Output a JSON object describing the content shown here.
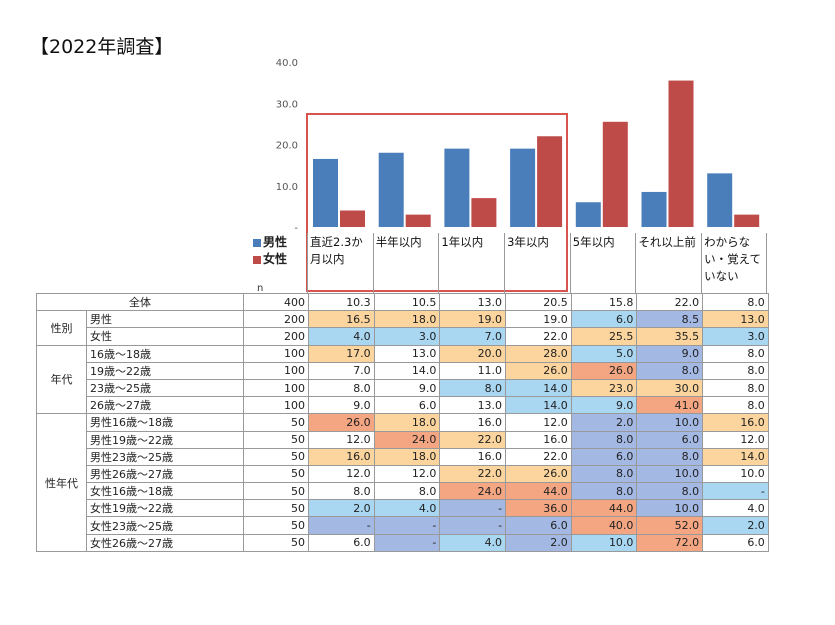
{
  "title": "【2022年調査】",
  "chart_data": {
    "type": "bar",
    "yticks": [
      "40.0",
      "30.0",
      "20.0",
      "10.0",
      "-"
    ],
    "ylim": [
      0,
      40
    ],
    "categories": [
      "直近2.3か月以内",
      "半年以内",
      "1年以内",
      "3年以内",
      "5年以内",
      "それ以上前",
      "わからない・覚えていない"
    ],
    "series": [
      {
        "name": "男性",
        "color": "#4a7ebb",
        "values": [
          16.5,
          18.0,
          19.0,
          19.0,
          6.0,
          8.5,
          13.0
        ]
      },
      {
        "name": "女性",
        "color": "#be4b48",
        "values": [
          4.0,
          3.0,
          7.0,
          22.0,
          25.5,
          35.5,
          3.0
        ]
      }
    ]
  },
  "legend": {
    "male": "男性",
    "female": "女性"
  },
  "n_label": "n",
  "categories_display": [
    "直近2.3か月以内",
    "半年以内",
    "1年以内",
    "3年以内",
    "5年以内",
    "それ以上前",
    "わからない・覚えていない"
  ],
  "colors": {
    "orange": "#fbd59d",
    "salmon": "#f4a582",
    "lightblue": "#a9d7f2",
    "blue": "#a3b8e3"
  },
  "table": {
    "total": {
      "label": "全体",
      "n": "400",
      "values": [
        "10.3",
        "10.5",
        "13.0",
        "20.5",
        "15.8",
        "22.0",
        "8.0"
      ]
    },
    "groups": [
      {
        "label": "性別",
        "rows": [
          {
            "label": "男性",
            "n": "200",
            "values": [
              "16.5",
              "18.0",
              "19.0",
              "19.0",
              "6.0",
              "8.5",
              "13.0"
            ],
            "colors": [
              "o",
              "o",
              "o",
              "",
              "l",
              "b",
              "o"
            ]
          },
          {
            "label": "女性",
            "n": "200",
            "values": [
              "4.0",
              "3.0",
              "7.0",
              "22.0",
              "25.5",
              "35.5",
              "3.0"
            ],
            "colors": [
              "l",
              "l",
              "l",
              "",
              "o",
              "o",
              "l"
            ]
          }
        ]
      },
      {
        "label": "年代",
        "rows": [
          {
            "label": "16歳〜18歳",
            "n": "100",
            "values": [
              "17.0",
              "13.0",
              "20.0",
              "28.0",
              "5.0",
              "9.0",
              "8.0"
            ],
            "colors": [
              "o",
              "",
              "o",
              "o",
              "l",
              "b",
              ""
            ]
          },
          {
            "label": "19歳〜22歳",
            "n": "100",
            "values": [
              "7.0",
              "14.0",
              "11.0",
              "26.0",
              "26.0",
              "8.0",
              "8.0"
            ],
            "colors": [
              "",
              "",
              "",
              "o",
              "s",
              "b",
              ""
            ]
          },
          {
            "label": "23歳〜25歳",
            "n": "100",
            "values": [
              "8.0",
              "9.0",
              "8.0",
              "14.0",
              "23.0",
              "30.0",
              "8.0"
            ],
            "colors": [
              "",
              "",
              "l",
              "l",
              "o",
              "o",
              ""
            ]
          },
          {
            "label": "26歳〜27歳",
            "n": "100",
            "values": [
              "9.0",
              "6.0",
              "13.0",
              "14.0",
              "9.0",
              "41.0",
              "8.0"
            ],
            "colors": [
              "",
              "",
              "",
              "l",
              "l",
              "s",
              ""
            ]
          }
        ]
      },
      {
        "label": "性年代",
        "rows": [
          {
            "label": "男性16歳〜18歳",
            "n": "50",
            "values": [
              "26.0",
              "18.0",
              "16.0",
              "12.0",
              "2.0",
              "10.0",
              "16.0"
            ],
            "colors": [
              "s",
              "o",
              "",
              "",
              "b",
              "b",
              "o"
            ]
          },
          {
            "label": "男性19歳〜22歳",
            "n": "50",
            "values": [
              "12.0",
              "24.0",
              "22.0",
              "16.0",
              "8.0",
              "6.0",
              "12.0"
            ],
            "colors": [
              "",
              "s",
              "o",
              "",
              "b",
              "b",
              ""
            ]
          },
          {
            "label": "男性23歳〜25歳",
            "n": "50",
            "values": [
              "16.0",
              "18.0",
              "16.0",
              "22.0",
              "6.0",
              "8.0",
              "14.0"
            ],
            "colors": [
              "o",
              "o",
              "",
              "",
              "b",
              "b",
              "o"
            ]
          },
          {
            "label": "男性26歳〜27歳",
            "n": "50",
            "values": [
              "12.0",
              "12.0",
              "22.0",
              "26.0",
              "8.0",
              "10.0",
              "10.0"
            ],
            "colors": [
              "",
              "",
              "o",
              "o",
              "b",
              "b",
              ""
            ]
          },
          {
            "label": "女性16歳〜18歳",
            "n": "50",
            "values": [
              "8.0",
              "8.0",
              "24.0",
              "44.0",
              "8.0",
              "8.0",
              "-"
            ],
            "colors": [
              "",
              "",
              "s",
              "s",
              "b",
              "b",
              "l"
            ]
          },
          {
            "label": "女性19歳〜22歳",
            "n": "50",
            "values": [
              "2.0",
              "4.0",
              "-",
              "36.0",
              "44.0",
              "10.0",
              "4.0"
            ],
            "colors": [
              "l",
              "l",
              "b",
              "s",
              "s",
              "b",
              ""
            ]
          },
          {
            "label": "女性23歳〜25歳",
            "n": "50",
            "values": [
              "-",
              "-",
              "-",
              "6.0",
              "40.0",
              "52.0",
              "2.0"
            ],
            "colors": [
              "b",
              "b",
              "b",
              "b",
              "s",
              "s",
              "l"
            ]
          },
          {
            "label": "女性26歳〜27歳",
            "n": "50",
            "values": [
              "6.0",
              "-",
              "4.0",
              "2.0",
              "10.0",
              "72.0",
              "6.0"
            ],
            "colors": [
              "",
              "b",
              "l",
              "b",
              "l",
              "s",
              ""
            ]
          }
        ]
      }
    ]
  }
}
